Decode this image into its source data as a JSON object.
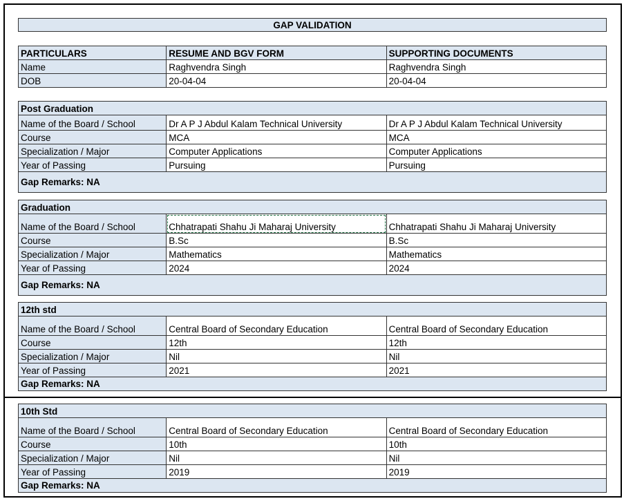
{
  "title": "GAP VALIDATION",
  "header": {
    "columns": [
      "PARTICULARS",
      "RESUME AND BGV FORM",
      "SUPPORTING DOCUMENTS"
    ],
    "rows": [
      {
        "label": "Name",
        "resume": "Raghvendra Singh",
        "docs": "Raghvendra Singh"
      },
      {
        "label": "DOB",
        "resume": "20-04-04",
        "docs": "20-04-04"
      }
    ]
  },
  "sections": [
    {
      "title": "Post Graduation",
      "rows": [
        {
          "label": "Name of the Board / School",
          "resume": "Dr A P J Abdul Kalam Technical University",
          "docs": "Dr A P J Abdul Kalam Technical University"
        },
        {
          "label": "Course",
          "resume": "MCA",
          "docs": "MCA"
        },
        {
          "label": "Specialization / Major",
          "resume": "Computer Applications",
          "docs": "Computer Applications"
        },
        {
          "label": "Year of Passing",
          "resume": "Pursuing",
          "docs": "Pursuing"
        }
      ],
      "remarks": "Gap Remarks: NA"
    },
    {
      "title": "Graduation",
      "rows": [
        {
          "label": "Name of the Board / School",
          "resume": "Chhatrapati Shahu Ji Maharaj University",
          "docs": "Chhatrapati Shahu Ji Maharaj University"
        },
        {
          "label": "Course",
          "resume": "B.Sc",
          "docs": "B.Sc"
        },
        {
          "label": "Specialization / Major",
          "resume": "Mathematics",
          "docs": "Mathematics"
        },
        {
          "label": "Year of Passing",
          "resume": "2024",
          "docs": "2024"
        }
      ],
      "remarks": "Gap Remarks: NA"
    },
    {
      "title": "12th std",
      "rows": [
        {
          "label": "Name of the Board / School",
          "resume": "Central Board of Secondary Education",
          "docs": "Central Board of Secondary Education"
        },
        {
          "label": "Course",
          "resume": "12th",
          "docs": "12th"
        },
        {
          "label": "Specialization / Major",
          "resume": "Nil",
          "docs": "Nil"
        },
        {
          "label": "Year of Passing",
          "resume": "2021",
          "docs": "2021"
        }
      ],
      "remarks": "Gap Remarks: NA"
    },
    {
      "title": "10th Std",
      "rows": [
        {
          "label": "Name of the Board / School",
          "resume": "Central Board of Secondary Education",
          "docs": "Central Board of Secondary Education"
        },
        {
          "label": "Course",
          "resume": "10th",
          "docs": "10th"
        },
        {
          "label": "Specialization / Major",
          "resume": "Nil",
          "docs": "Nil"
        },
        {
          "label": "Year of Passing",
          "resume": "2019",
          "docs": "2019"
        }
      ],
      "remarks": "Gap Remarks: NA"
    }
  ],
  "colors": {
    "header_fill": "#dce6f1",
    "selection": "#217346"
  }
}
